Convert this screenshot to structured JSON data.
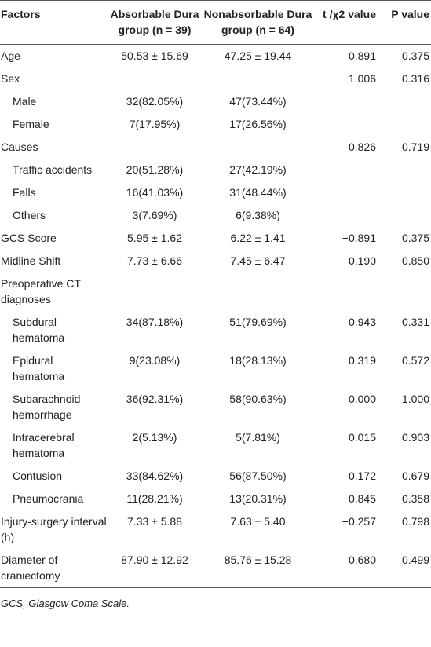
{
  "table": {
    "header": [
      "Factors",
      "Absorbable Dura group (n = 39)",
      "Nonabsorbable Dura group (n = 64)",
      "t /χ2 value",
      "P value"
    ],
    "rows": [
      {
        "factor": "Age",
        "absorbable": "50.53 ± 15.69",
        "nonabsorbable": "47.25 ± 19.44",
        "t": "0.891",
        "p": "0.375"
      },
      {
        "factor": "Sex",
        "t": "1.006",
        "p": "0.316",
        "items": [
          {
            "factor": "Male",
            "absorbable": "32(82.05%)",
            "nonabsorbable": "47(73.44%)"
          },
          {
            "factor": "Female",
            "absorbable": "7(17.95%)",
            "nonabsorbable": "17(26.56%)"
          }
        ]
      },
      {
        "factor": "Causes",
        "t": "0.826",
        "p": "0.719",
        "items": [
          {
            "factor": "Traffic accidents",
            "absorbable": "20(51.28%)",
            "nonabsorbable": "27(42.19%)"
          },
          {
            "factor": "Falls",
            "absorbable": "16(41.03%)",
            "nonabsorbable": "31(48.44%)"
          },
          {
            "factor": "Others",
            "absorbable": "3(7.69%)",
            "nonabsorbable": "6(9.38%)"
          }
        ]
      },
      {
        "factor": "GCS Score",
        "absorbable": "5.95 ± 1.62",
        "nonabsorbable": "6.22 ± 1.41",
        "t": "−0.891",
        "p": "0.375"
      },
      {
        "factor": "Midline Shift",
        "absorbable": "7.73 ± 6.66",
        "nonabsorbable": "7.45 ± 6.47",
        "t": "0.190",
        "p": "0.850"
      },
      {
        "factor": "Preoperative CT diagnoses",
        "items": [
          {
            "factor": "Subdural hematoma",
            "absorbable": "34(87.18%)",
            "nonabsorbable": "51(79.69%)",
            "t": "0.943",
            "p": "0.331"
          },
          {
            "factor": "Epidural hematoma",
            "absorbable": "9(23.08%)",
            "nonabsorbable": "18(28.13%)",
            "t": "0.319",
            "p": "0.572"
          },
          {
            "factor": "Subarachnoid hemorrhage",
            "absorbable": "36(92.31%)",
            "nonabsorbable": "58(90.63%)",
            "t": "0.000",
            "p": "1.000"
          },
          {
            "factor": "Intracerebral hematoma",
            "absorbable": "2(5.13%)",
            "nonabsorbable": "5(7.81%)",
            "t": "0.015",
            "p": "0.903"
          },
          {
            "factor": "Contusion",
            "absorbable": "33(84.62%)",
            "nonabsorbable": "56(87.50%)",
            "t": "0.172",
            "p": "0.679"
          },
          {
            "factor": "Pneumocrania",
            "absorbable": "11(28.21%)",
            "nonabsorbable": "13(20.31%)",
            "t": "0.845",
            "p": "0.358"
          }
        ]
      },
      {
        "factor": "Injury-surgery interval (h)",
        "absorbable": "7.33 ± 5.88",
        "nonabsorbable": "7.63 ± 5.40",
        "t": "−0.257",
        "p": "0.798"
      },
      {
        "factor": "Diameter of craniectomy",
        "absorbable": "87.90 ± 12.92",
        "nonabsorbable": "85.76 ± 15.28",
        "t": "0.680",
        "p": "0.499"
      }
    ]
  },
  "footnote": "GCS, Glasgow Coma Scale."
}
